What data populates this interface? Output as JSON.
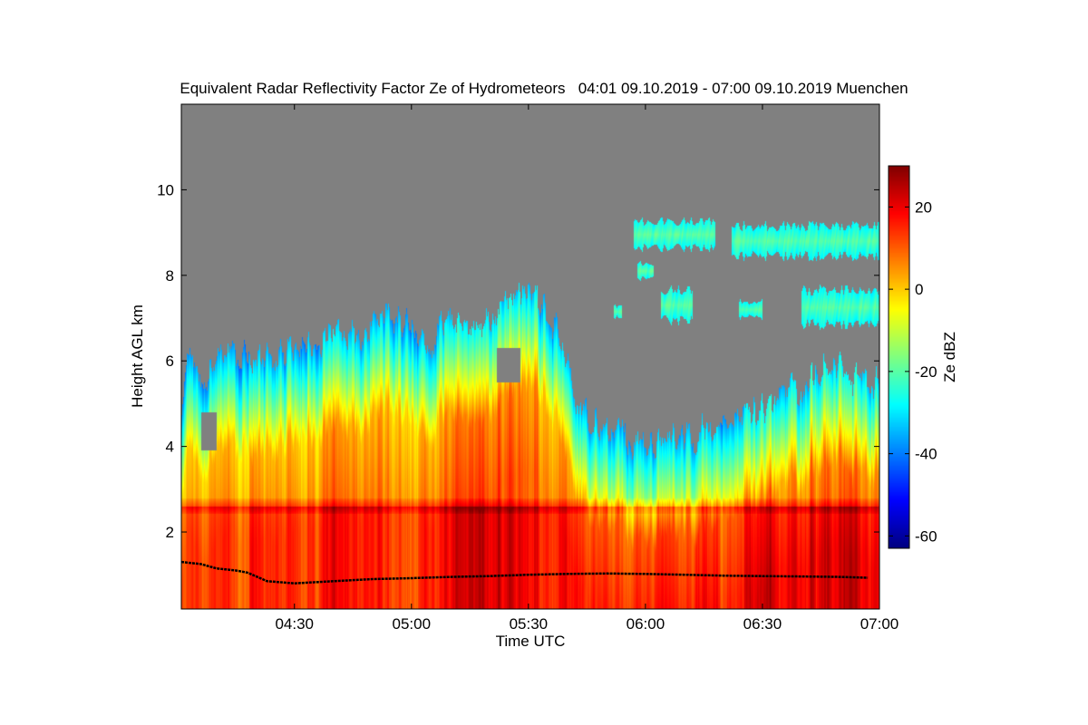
{
  "chart_data": {
    "type": "heatmap",
    "title": "Equivalent Radar Reflectivity Factor Ze of Hydrometeors   04:01 09.10.2019 - 07:00 09.10.2019 Muenchen",
    "xlabel": "Time UTC",
    "ylabel": "Height AGL km",
    "x_range_minutes_utc": [
      241,
      420
    ],
    "x_ticks": [
      {
        "minutes": 270,
        "label": "04:30"
      },
      {
        "minutes": 300,
        "label": "05:00"
      },
      {
        "minutes": 330,
        "label": "05:30"
      },
      {
        "minutes": 360,
        "label": "06:00"
      },
      {
        "minutes": 390,
        "label": "06:30"
      },
      {
        "minutes": 420,
        "label": "07:00"
      }
    ],
    "ylim_km": [
      0.2,
      12.0
    ],
    "y_ticks": [
      {
        "value": 2,
        "label": "2"
      },
      {
        "value": 4,
        "label": "4"
      },
      {
        "value": 6,
        "label": "6"
      },
      {
        "value": 8,
        "label": "8"
      },
      {
        "value": 10,
        "label": "10"
      }
    ],
    "colorbar": {
      "label": "Ze dBZ",
      "range": [
        -63,
        30
      ],
      "ticks": [
        {
          "value": 20,
          "label": "20"
        },
        {
          "value": 0,
          "label": "0"
        },
        {
          "value": -20,
          "label": "-20"
        },
        {
          "value": -40,
          "label": "-40"
        },
        {
          "value": -60,
          "label": "-60"
        }
      ],
      "colormap": "jet"
    },
    "no_signal_color": "#808080",
    "echo_top_km": [
      [
        241,
        5.2
      ],
      [
        243,
        6.0
      ],
      [
        246,
        5.6
      ],
      [
        250,
        6.0
      ],
      [
        255,
        6.2
      ],
      [
        260,
        6.0
      ],
      [
        265,
        6.3
      ],
      [
        270,
        6.2
      ],
      [
        275,
        6.4
      ],
      [
        280,
        6.6
      ],
      [
        285,
        6.5
      ],
      [
        290,
        6.8
      ],
      [
        295,
        7.0
      ],
      [
        300,
        6.8
      ],
      [
        305,
        6.4
      ],
      [
        308,
        7.0
      ],
      [
        312,
        6.9
      ],
      [
        318,
        6.8
      ],
      [
        322,
        7.3
      ],
      [
        325,
        7.6
      ],
      [
        330,
        7.6
      ],
      [
        334,
        7.4
      ],
      [
        338,
        6.5
      ],
      [
        341,
        5.4
      ],
      [
        345,
        4.8
      ],
      [
        348,
        4.5
      ],
      [
        352,
        4.3
      ],
      [
        356,
        4.1
      ],
      [
        360,
        4.0
      ],
      [
        365,
        4.1
      ],
      [
        370,
        4.2
      ],
      [
        375,
        4.3
      ],
      [
        380,
        4.4
      ],
      [
        385,
        4.6
      ],
      [
        390,
        4.9
      ],
      [
        395,
        5.3
      ],
      [
        400,
        5.5
      ],
      [
        405,
        5.7
      ],
      [
        410,
        5.8
      ],
      [
        415,
        5.6
      ],
      [
        420,
        5.5
      ]
    ],
    "echo_gaps": [
      {
        "t_start": 322,
        "t_end": 328,
        "z_bottom_km": 5.5,
        "z_top_km": 6.3
      },
      {
        "t_start": 246,
        "t_end": 250,
        "z_bottom_km": 3.9,
        "z_top_km": 4.8
      }
    ],
    "upper_cirrus_patches": [
      {
        "t_start": 357,
        "t_end": 378,
        "z_bottom_km": 8.6,
        "z_top_km": 9.3
      },
      {
        "t_start": 382,
        "t_end": 420,
        "z_bottom_km": 8.4,
        "z_top_km": 9.2
      },
      {
        "t_start": 358,
        "t_end": 362,
        "z_bottom_km": 7.9,
        "z_top_km": 8.3
      },
      {
        "t_start": 364,
        "t_end": 372,
        "z_bottom_km": 6.9,
        "z_top_km": 7.7
      },
      {
        "t_start": 384,
        "t_end": 390,
        "z_bottom_km": 7.0,
        "z_top_km": 7.4
      },
      {
        "t_start": 400,
        "t_end": 420,
        "z_bottom_km": 6.8,
        "z_top_km": 7.7
      },
      {
        "t_start": 352,
        "t_end": 354,
        "z_bottom_km": 7.0,
        "z_top_km": 7.3
      }
    ],
    "melting_layer_km": 2.6,
    "cloud_base_lidar_km": [
      [
        241,
        1.3
      ],
      [
        246,
        1.25
      ],
      [
        250,
        1.15
      ],
      [
        255,
        1.1
      ],
      [
        258,
        1.05
      ],
      [
        263,
        0.85
      ],
      [
        270,
        0.8
      ],
      [
        280,
        0.85
      ],
      [
        290,
        0.9
      ],
      [
        300,
        0.92
      ],
      [
        310,
        0.95
      ],
      [
        320,
        0.97
      ],
      [
        330,
        1.0
      ],
      [
        340,
        1.02
      ],
      [
        350,
        1.03
      ],
      [
        360,
        1.02
      ],
      [
        370,
        1.0
      ],
      [
        380,
        0.98
      ],
      [
        390,
        0.97
      ],
      [
        400,
        0.96
      ],
      [
        410,
        0.95
      ],
      [
        417,
        0.93
      ]
    ],
    "core_intensity_by_time": [
      [
        241,
        0.55
      ],
      [
        244,
        0.85
      ],
      [
        247,
        0.5
      ],
      [
        252,
        0.7
      ],
      [
        256,
        0.4
      ],
      [
        260,
        0.85
      ],
      [
        265,
        0.65
      ],
      [
        270,
        0.8
      ],
      [
        275,
        0.6
      ],
      [
        280,
        0.9
      ],
      [
        285,
        0.7
      ],
      [
        290,
        0.85
      ],
      [
        295,
        0.55
      ],
      [
        300,
        0.45
      ],
      [
        305,
        0.75
      ],
      [
        310,
        0.9
      ],
      [
        315,
        1.0
      ],
      [
        320,
        0.95
      ],
      [
        325,
        1.0
      ],
      [
        330,
        0.9
      ],
      [
        335,
        0.75
      ],
      [
        340,
        0.85
      ],
      [
        345,
        0.65
      ],
      [
        350,
        0.75
      ],
      [
        355,
        0.6
      ],
      [
        360,
        0.8
      ],
      [
        365,
        0.95
      ],
      [
        370,
        0.7
      ],
      [
        375,
        0.85
      ],
      [
        380,
        0.7
      ],
      [
        385,
        0.9
      ],
      [
        390,
        1.0
      ],
      [
        395,
        0.95
      ],
      [
        400,
        1.0
      ],
      [
        405,
        0.95
      ],
      [
        410,
        1.0
      ],
      [
        415,
        0.95
      ],
      [
        420,
        0.9
      ]
    ]
  }
}
